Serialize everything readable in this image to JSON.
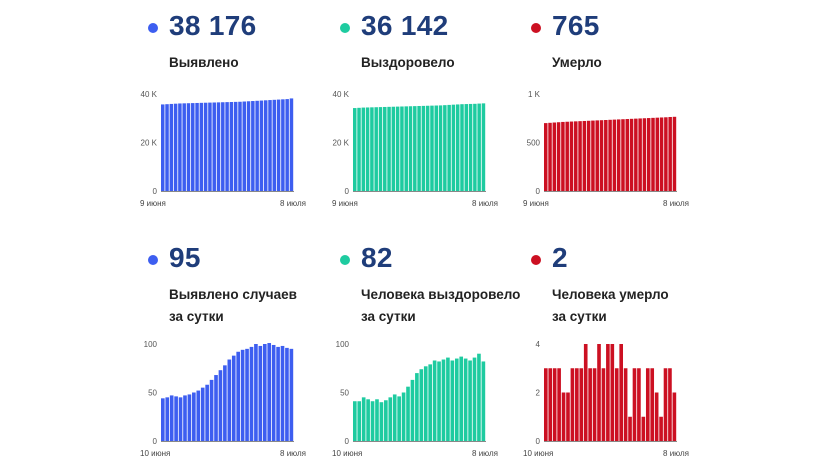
{
  "colors": {
    "blue": "#3d5ef0",
    "green": "#1ecba0",
    "red": "#cc1022"
  },
  "panels": [
    {
      "id": "total-cases",
      "value": "38 176",
      "label": "Выявлено",
      "label2": "",
      "color": "#3d5ef0",
      "color_name": "blue"
    },
    {
      "id": "total-recovered",
      "value": "36 142",
      "label": "Выздоровело",
      "label2": "",
      "color": "#1ecba0",
      "color_name": "green"
    },
    {
      "id": "total-deaths",
      "value": "765",
      "label": "Умерло",
      "label2": "",
      "color": "#cc1022",
      "color_name": "red"
    },
    {
      "id": "daily-cases",
      "value": "95",
      "label": "Выявлено случаев",
      "label2": "за сутки",
      "color": "#3d5ef0",
      "color_name": "blue"
    },
    {
      "id": "daily-recovered",
      "value": "82",
      "label": "Человека выздоровело",
      "label2": "за сутки",
      "color": "#1ecba0",
      "color_name": "green"
    },
    {
      "id": "daily-deaths",
      "value": "2",
      "label": "Человека умерло",
      "label2": "за сутки",
      "color": "#cc1022",
      "color_name": "red"
    }
  ],
  "chart_data": [
    {
      "type": "bar",
      "title": "Выявлено",
      "color": "#3d5ef0",
      "x_start_label": "9 июня",
      "x_end_label": "8 июля",
      "ylim": [
        0,
        40000
      ],
      "yticks": [
        0,
        20000,
        40000
      ],
      "ytick_labels": [
        "0",
        "20 K",
        "40 K"
      ],
      "values": [
        35700,
        35800,
        35900,
        36000,
        36100,
        36150,
        36200,
        36250,
        36300,
        36350,
        36400,
        36450,
        36500,
        36550,
        36600,
        36650,
        36700,
        36750,
        36800,
        36900,
        37000,
        37100,
        37200,
        37300,
        37400,
        37500,
        37600,
        37700,
        37800,
        37900,
        38176
      ]
    },
    {
      "type": "bar",
      "title": "Выздоровело",
      "color": "#1ecba0",
      "x_start_label": "9 июня",
      "x_end_label": "8 июля",
      "ylim": [
        0,
        40000
      ],
      "yticks": [
        0,
        20000,
        40000
      ],
      "ytick_labels": [
        "0",
        "20 K",
        "40 K"
      ],
      "values": [
        34200,
        34300,
        34400,
        34450,
        34500,
        34550,
        34600,
        34650,
        34700,
        34750,
        34800,
        34850,
        34900,
        34950,
        35000,
        35050,
        35100,
        35150,
        35200,
        35250,
        35300,
        35400,
        35500,
        35600,
        35700,
        35800,
        35850,
        35900,
        35950,
        36050,
        36142
      ]
    },
    {
      "type": "bar",
      "title": "Умерло",
      "color": "#cc1022",
      "x_start_label": "9 июня",
      "x_end_label": "8 июля",
      "ylim": [
        0,
        1000
      ],
      "yticks": [
        0,
        500,
        1000
      ],
      "ytick_labels": [
        "0",
        "500",
        "1 K"
      ],
      "values": [
        700,
        703,
        706,
        709,
        712,
        714,
        716,
        718,
        720,
        722,
        724,
        726,
        728,
        730,
        732,
        734,
        736,
        738,
        740,
        742,
        744,
        746,
        748,
        750,
        752,
        754,
        756,
        758,
        760,
        763,
        765
      ]
    },
    {
      "type": "bar",
      "title": "Выявлено случаев за сутки",
      "color": "#3d5ef0",
      "x_start_label": "10 июня",
      "x_end_label": "8 июля",
      "ylim": [
        0,
        100
      ],
      "yticks": [
        0,
        50,
        100
      ],
      "ytick_labels": [
        "0",
        "50",
        "100"
      ],
      "values": [
        44,
        45,
        47,
        46,
        45,
        47,
        48,
        50,
        52,
        55,
        58,
        63,
        68,
        73,
        78,
        84,
        88,
        92,
        94,
        95,
        97,
        100,
        98,
        100,
        101,
        99,
        97,
        98,
        96,
        95
      ]
    },
    {
      "type": "bar",
      "title": "Человека выздоровело за сутки",
      "color": "#1ecba0",
      "x_start_label": "10 июня",
      "x_end_label": "8 июля",
      "ylim": [
        0,
        100
      ],
      "yticks": [
        0,
        50,
        100
      ],
      "ytick_labels": [
        "0",
        "50",
        "100"
      ],
      "values": [
        41,
        41,
        45,
        43,
        41,
        43,
        40,
        42,
        45,
        48,
        46,
        50,
        56,
        63,
        70,
        74,
        77,
        79,
        83,
        82,
        84,
        86,
        83,
        85,
        87,
        85,
        83,
        86,
        90,
        82
      ]
    },
    {
      "type": "bar",
      "title": "Человека умерло за сутки",
      "color": "#cc1022",
      "x_start_label": "10 июня",
      "x_end_label": "8 июля",
      "ylim": [
        0,
        4
      ],
      "yticks": [
        0,
        2,
        4
      ],
      "ytick_labels": [
        "0",
        "2",
        "4"
      ],
      "values": [
        3,
        3,
        3,
        3,
        2,
        2,
        3,
        3,
        3,
        4,
        3,
        3,
        4,
        3,
        4,
        4,
        3,
        4,
        3,
        1,
        3,
        3,
        1,
        3,
        3,
        2,
        1,
        3,
        3,
        2
      ]
    }
  ]
}
